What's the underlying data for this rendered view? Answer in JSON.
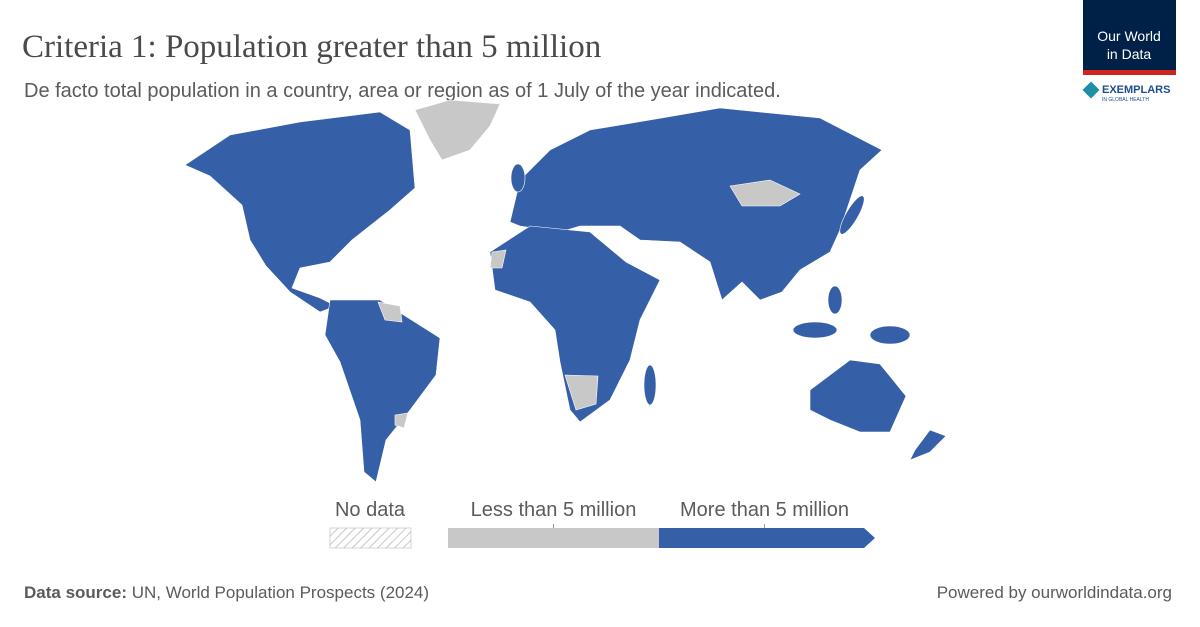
{
  "header": {
    "title": "Criteria 1: Population greater than 5 million",
    "subtitle": "De facto total population in a country, area or region as of 1 July of the year indicated."
  },
  "logo": {
    "line1": "Our World",
    "line2": "in Data",
    "partner": "EXEMPLARS",
    "partner_sub": "IN GLOBAL HEALTH"
  },
  "legend": {
    "no_data": "No data",
    "items": [
      {
        "label": "Less than 5 million",
        "color": "#c8c8c8"
      },
      {
        "label": "More than 5 million",
        "color": "#3560a8"
      }
    ]
  },
  "footer": {
    "source_label": "Data source:",
    "source": "UN, World Population Prospects (2024)",
    "powered": "Powered by ourworldindata.org"
  }
}
